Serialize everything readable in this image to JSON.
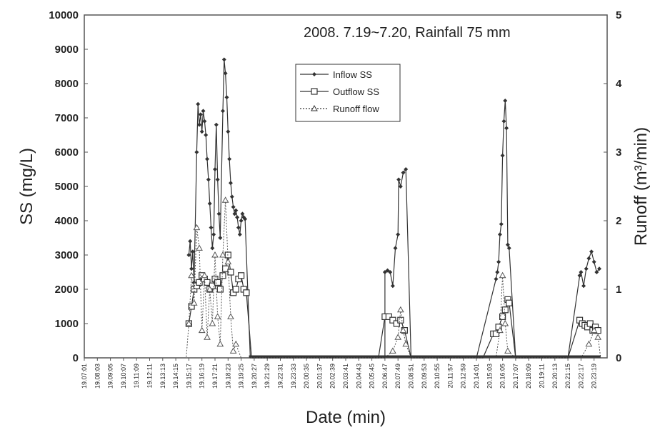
{
  "chart_data": {
    "type": "line",
    "annotation": "2008. 7.19~7.20, Rainfall 75 mm",
    "xlabel": "Date (min)",
    "ylabel": "SS (mg/L)",
    "y2label": "Runoff (m³/min)",
    "ylim": [
      0,
      10000
    ],
    "y2lim": [
      0,
      5
    ],
    "y_ticks": [
      "0",
      "1000",
      "2000",
      "3000",
      "4000",
      "5000",
      "6000",
      "7000",
      "8000",
      "9000",
      "10000"
    ],
    "y2_ticks": [
      "0",
      "1",
      "2",
      "3",
      "4",
      "5"
    ],
    "x_ticks": [
      "19.07:01",
      "19.08:03",
      "19.09:05",
      "19.10:07",
      "19.11:09",
      "19.12:11",
      "19.13:13",
      "19.14:15",
      "19.15:17",
      "19.16:19",
      "19.17:21",
      "19.18:23",
      "19.19:25",
      "19.20:27",
      "19.21:29",
      "19.22:31",
      "19.23:33",
      "20.00:35",
      "20.01:37",
      "20.02:39",
      "20.03:41",
      "20.04:43",
      "20.05:45",
      "20.06:47",
      "20.07:49",
      "20.08:51",
      "20.09:53",
      "20.10:55",
      "20.11:57",
      "20.12:59",
      "20.14:01",
      "20.15:03",
      "20.16:05",
      "20.17:07",
      "20.18:09",
      "20.19:11",
      "20.20:13",
      "20.21:15",
      "20.22:17",
      "20.23:19"
    ],
    "x_range_ticks": [
      0,
      40
    ],
    "legend": {
      "placement": "top-center",
      "entries": [
        "Inflow SS",
        "Outflow SS",
        "Runoff flow"
      ]
    },
    "grid": false,
    "series": [
      {
        "name": "Inflow SS",
        "axis": "left",
        "color": "#333333",
        "marker": "diamond",
        "points": [
          [
            8.0,
            3000
          ],
          [
            8.1,
            3400
          ],
          [
            8.2,
            2600
          ],
          [
            8.3,
            3100
          ],
          [
            8.4,
            2200
          ],
          [
            8.6,
            6000
          ],
          [
            8.7,
            7400
          ],
          [
            8.8,
            6800
          ],
          [
            8.9,
            7100
          ],
          [
            9.0,
            6600
          ],
          [
            9.1,
            7200
          ],
          [
            9.2,
            6900
          ],
          [
            9.3,
            6500
          ],
          [
            9.4,
            5800
          ],
          [
            9.5,
            5200
          ],
          [
            9.6,
            4500
          ],
          [
            9.7,
            3800
          ],
          [
            9.8,
            3200
          ],
          [
            9.9,
            3600
          ],
          [
            10.0,
            5500
          ],
          [
            10.1,
            6800
          ],
          [
            10.2,
            5200
          ],
          [
            10.3,
            4200
          ],
          [
            10.4,
            3500
          ],
          [
            10.6,
            7200
          ],
          [
            10.7,
            8700
          ],
          [
            10.8,
            8300
          ],
          [
            10.9,
            7600
          ],
          [
            11.0,
            6600
          ],
          [
            11.1,
            5800
          ],
          [
            11.2,
            5100
          ],
          [
            11.3,
            4700
          ],
          [
            11.4,
            4400
          ],
          [
            11.5,
            4200
          ],
          [
            11.6,
            4300
          ],
          [
            11.7,
            4100
          ],
          [
            11.8,
            3800
          ],
          [
            11.9,
            3600
          ],
          [
            12.0,
            4000
          ],
          [
            12.1,
            4200
          ],
          [
            12.2,
            4100
          ],
          [
            12.3,
            4050
          ],
          [
            12.7,
            0
          ],
          [
            20.0,
            0
          ],
          [
            23.0,
            0
          ],
          [
            23.0,
            2500
          ],
          [
            23.2,
            2550
          ],
          [
            23.4,
            2500
          ],
          [
            23.6,
            2100
          ],
          [
            23.8,
            3200
          ],
          [
            24.0,
            3600
          ],
          [
            24.05,
            5200
          ],
          [
            24.2,
            5000
          ],
          [
            24.4,
            5400
          ],
          [
            24.6,
            5500
          ],
          [
            25.0,
            0
          ],
          [
            30.0,
            0
          ],
          [
            31.5,
            2300
          ],
          [
            31.6,
            2500
          ],
          [
            31.7,
            2800
          ],
          [
            31.8,
            3600
          ],
          [
            31.9,
            3900
          ],
          [
            32.0,
            5900
          ],
          [
            32.1,
            6900
          ],
          [
            32.2,
            7500
          ],
          [
            32.3,
            6700
          ],
          [
            32.4,
            3300
          ],
          [
            32.5,
            3200
          ],
          [
            33.0,
            0
          ],
          [
            37.0,
            0
          ],
          [
            37.9,
            2400
          ],
          [
            38.0,
            2500
          ],
          [
            38.2,
            2100
          ],
          [
            38.4,
            2600
          ],
          [
            38.6,
            2900
          ],
          [
            38.8,
            3100
          ],
          [
            39.0,
            2800
          ],
          [
            39.2,
            2500
          ],
          [
            39.4,
            2600
          ]
        ]
      },
      {
        "name": "Outflow SS",
        "axis": "left",
        "color": "#333333",
        "marker": "square",
        "points": [
          [
            8.0,
            1000
          ],
          [
            8.2,
            1500
          ],
          [
            8.4,
            2000
          ],
          [
            8.6,
            2100
          ],
          [
            8.8,
            2200
          ],
          [
            9.0,
            2400
          ],
          [
            9.2,
            2300
          ],
          [
            9.4,
            2200
          ],
          [
            9.6,
            2000
          ],
          [
            9.8,
            2100
          ],
          [
            10.0,
            2300
          ],
          [
            10.2,
            2200
          ],
          [
            10.4,
            2000
          ],
          [
            10.6,
            2400
          ],
          [
            10.8,
            2600
          ],
          [
            11.0,
            3000
          ],
          [
            11.2,
            2500
          ],
          [
            11.4,
            1900
          ],
          [
            11.6,
            2000
          ],
          [
            11.8,
            2300
          ],
          [
            12.0,
            2400
          ],
          [
            12.2,
            2000
          ],
          [
            12.4,
            1900
          ],
          [
            12.8,
            0
          ],
          [
            22.5,
            0
          ],
          [
            23.0,
            1200
          ],
          [
            23.3,
            1200
          ],
          [
            23.6,
            1100
          ],
          [
            23.9,
            1000
          ],
          [
            24.2,
            1100
          ],
          [
            24.5,
            800
          ],
          [
            25.0,
            0
          ],
          [
            30.5,
            0
          ],
          [
            31.3,
            700
          ],
          [
            31.5,
            700
          ],
          [
            31.7,
            900
          ],
          [
            32.0,
            1200
          ],
          [
            32.2,
            1400
          ],
          [
            32.4,
            1700
          ],
          [
            32.5,
            1600
          ],
          [
            33.0,
            0
          ],
          [
            37.0,
            0
          ],
          [
            37.9,
            1100
          ],
          [
            38.1,
            1000
          ],
          [
            38.3,
            950
          ],
          [
            38.5,
            900
          ],
          [
            38.7,
            1000
          ],
          [
            38.9,
            800
          ],
          [
            39.1,
            900
          ],
          [
            39.3,
            800
          ]
        ]
      },
      {
        "name": "Runoff flow",
        "axis": "right",
        "color": "#555555",
        "marker": "triangle",
        "points": [
          [
            0,
            0
          ],
          [
            7.8,
            0
          ],
          [
            8.0,
            0.5
          ],
          [
            8.2,
            1.2
          ],
          [
            8.4,
            0.8
          ],
          [
            8.6,
            1.9
          ],
          [
            8.8,
            1.6
          ],
          [
            9.0,
            0.4
          ],
          [
            9.2,
            1.2
          ],
          [
            9.4,
            0.3
          ],
          [
            9.6,
            1.0
          ],
          [
            9.8,
            0.5
          ],
          [
            10.0,
            1.5
          ],
          [
            10.2,
            0.6
          ],
          [
            10.4,
            0.2
          ],
          [
            10.6,
            1.5
          ],
          [
            10.8,
            2.3
          ],
          [
            11.0,
            1.4
          ],
          [
            11.2,
            0.6
          ],
          [
            11.4,
            0.1
          ],
          [
            11.6,
            0.2
          ],
          [
            12.0,
            0
          ],
          [
            23.0,
            0
          ],
          [
            23.6,
            0.1
          ],
          [
            24.0,
            0.3
          ],
          [
            24.2,
            0.7
          ],
          [
            24.4,
            0.4
          ],
          [
            24.6,
            0.2
          ],
          [
            25.0,
            0
          ],
          [
            31.5,
            0
          ],
          [
            31.8,
            0.4
          ],
          [
            32.0,
            1.2
          ],
          [
            32.2,
            0.5
          ],
          [
            32.4,
            0.1
          ],
          [
            33.0,
            0
          ],
          [
            38.0,
            0
          ],
          [
            38.6,
            0.2
          ],
          [
            39.0,
            0.4
          ],
          [
            39.3,
            0.3
          ],
          [
            39.5,
            0
          ],
          [
            40.0,
            0
          ]
        ]
      }
    ]
  }
}
